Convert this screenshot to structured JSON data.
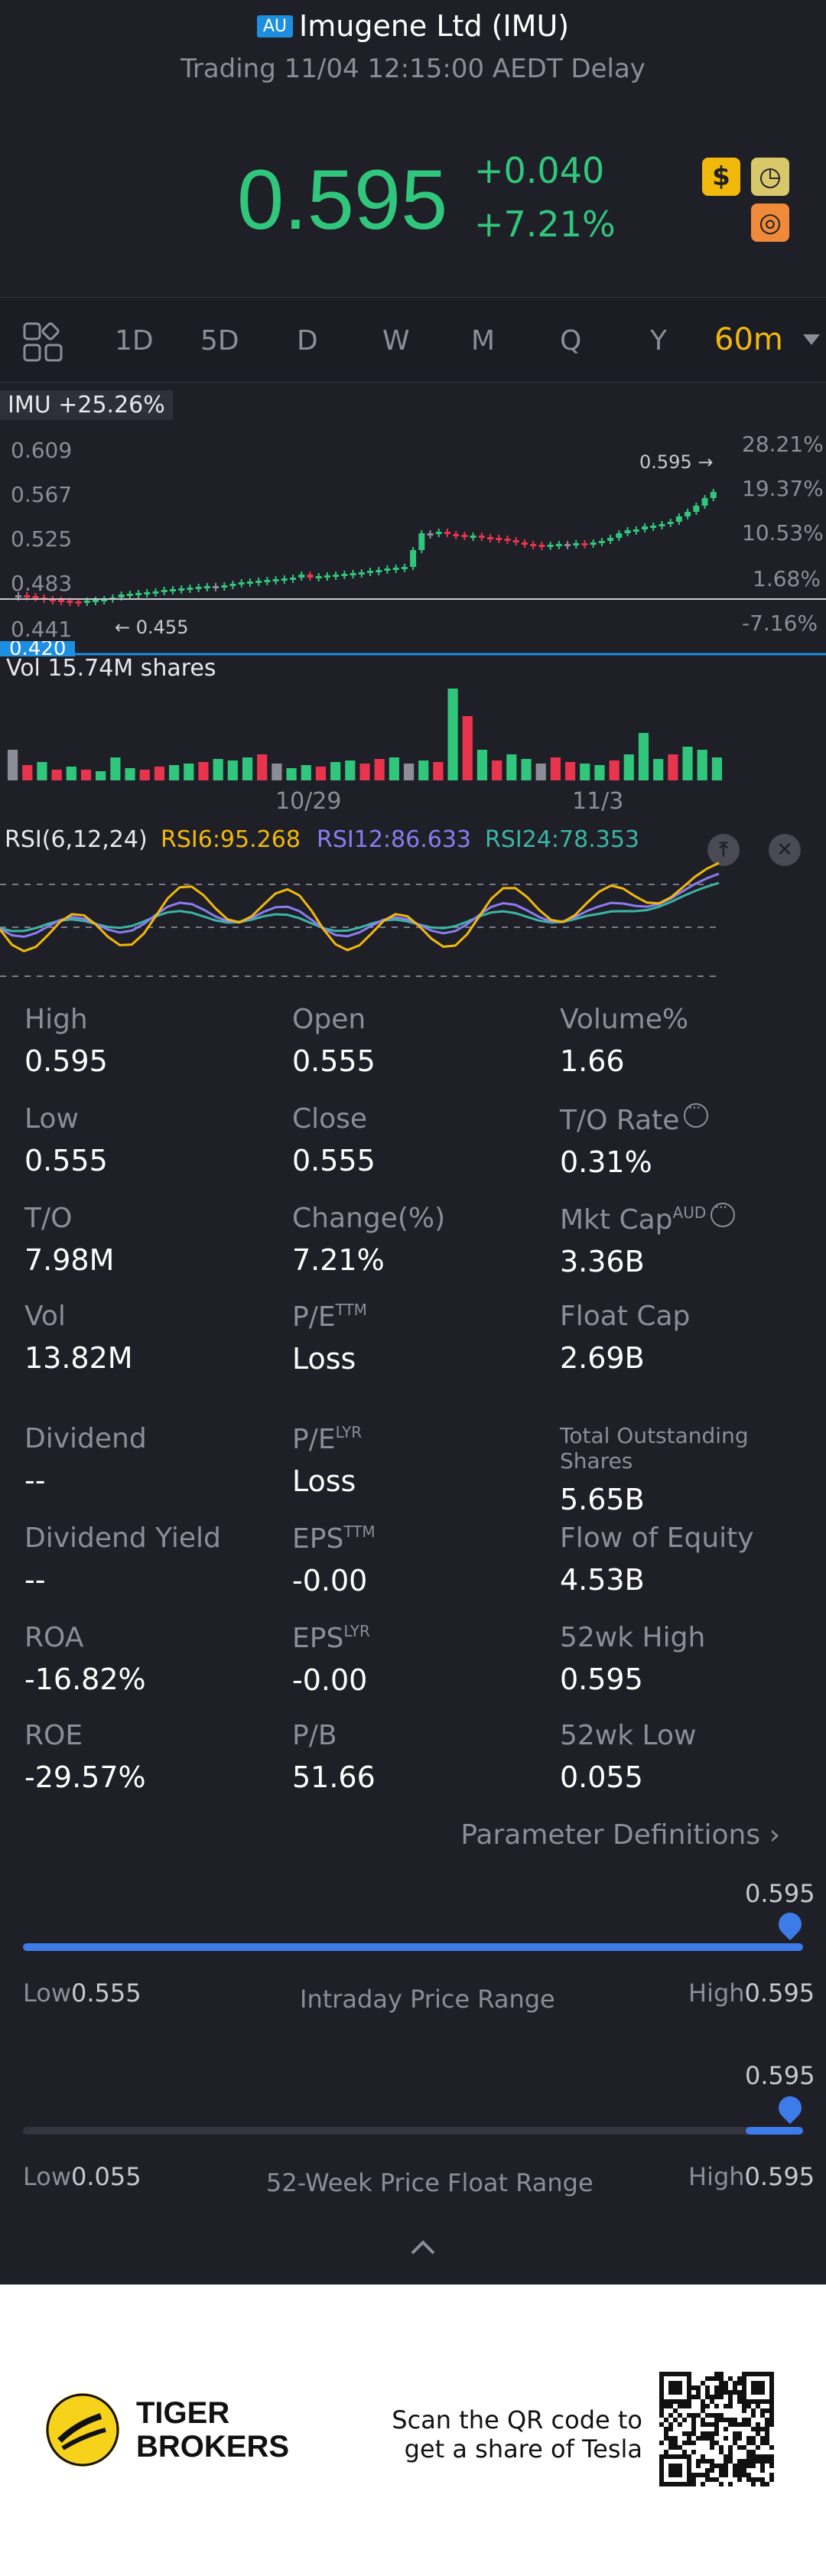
{
  "header": {
    "market_badge": "AU",
    "title": "Imugene Ltd (IMU)",
    "status": "Trading 11/04 12:15:00 AEDT Delay"
  },
  "quote": {
    "price": "0.595",
    "change": "+0.040",
    "change_pct": "+7.21%",
    "icons": [
      "dollar-icon",
      "clock-icon",
      "brain-icon"
    ]
  },
  "tabs": {
    "grid_icon": "layout-grid-icon",
    "items": [
      "1D",
      "5D",
      "D",
      "W",
      "M",
      "Q",
      "Y",
      "60m"
    ],
    "active": "60m"
  },
  "chart": {
    "tag": "IMU +25.26%",
    "y_labels": [
      "0.609",
      "0.567",
      "0.525",
      "0.483",
      "0.441"
    ],
    "pct_labels": [
      "28.21%",
      "19.37%",
      "10.53%",
      "1.68%",
      "-7.16%"
    ],
    "current_price_label": "0.420",
    "high_marker": "0.595",
    "low_marker": "0.455",
    "vol_label": "Vol   15.74M shares",
    "dates": [
      "10/29",
      "11/3"
    ],
    "rsi_label": "RSI(6,12,24)",
    "rsi6": "RSI6:95.268",
    "rsi12": "RSI12:86.633",
    "rsi24": "RSI24:78.353"
  },
  "chart_data": {
    "type": "candlestick",
    "y_axis": [
      0.441,
      0.483,
      0.525,
      0.567,
      0.609
    ],
    "dates": [
      "10/29",
      "11/3"
    ],
    "rsi": {
      "RSI6": 95.268,
      "RSI12": 86.633,
      "RSI24": 78.353
    },
    "volume": "15.74M shares",
    "colors": {
      "up": "#30c67c",
      "down": "#e8354d",
      "neutral": "#8d8d97"
    }
  },
  "stats": [
    {
      "label": "High",
      "value": "0.595"
    },
    {
      "label": "Open",
      "value": "0.555"
    },
    {
      "label": "Volume%",
      "value": "1.66"
    },
    {
      "label": "Low",
      "value": "0.555"
    },
    {
      "label": "Close",
      "value": "0.555"
    },
    {
      "label": "T/O Rate",
      "value": "0.31%"
    },
    {
      "label": "T/O",
      "value": "7.98M"
    },
    {
      "label": "Change(%)",
      "value": "7.21%"
    },
    {
      "label": "Mkt Cap",
      "sup": "AUD",
      "value": "3.36B"
    },
    {
      "label": "Vol",
      "value": "13.82M"
    },
    {
      "label": "P/E",
      "sup": "TTM",
      "value": "Loss"
    },
    {
      "label": "Float Cap",
      "value": "2.69B"
    },
    {
      "label": "Dividend",
      "value": "--"
    },
    {
      "label": "P/E",
      "sup": "LYR",
      "value": "Loss"
    },
    {
      "label": "Total Outstanding Shares",
      "value": "5.65B"
    },
    {
      "label": "Dividend Yield",
      "value": "--"
    },
    {
      "label": "EPS",
      "sup": "TTM",
      "value": "-0.00"
    },
    {
      "label": "Flow of Equity",
      "value": "4.53B"
    },
    {
      "label": "ROA",
      "value": "-16.82%"
    },
    {
      "label": "EPS",
      "sup": "LYR",
      "value": "-0.00"
    },
    {
      "label": "52wk High",
      "value": "0.595"
    },
    {
      "label": "ROE",
      "value": "-29.57%"
    },
    {
      "label": "P/B",
      "value": "51.66"
    },
    {
      "label": "52wk Low",
      "value": "0.055"
    }
  ],
  "param_link": "Parameter Definitions",
  "intraday": {
    "marker": "0.595",
    "low_label": "Low",
    "low": "0.555",
    "title": "Intraday Price Range",
    "high_label": "High",
    "high": "0.595",
    "position_fraction": 1.0
  },
  "week52": {
    "marker": "0.595",
    "low_label": "Low",
    "low": "0.055",
    "title": "52-Week Price Float Range",
    "high_label": "High",
    "high": "0.595",
    "position_fraction": 1.0
  },
  "footer": {
    "brand_line1": "TIGER",
    "brand_line2": "BROKERS",
    "scan_line1": "Scan the QR code to",
    "scan_line2": "get a share of Tesla"
  }
}
